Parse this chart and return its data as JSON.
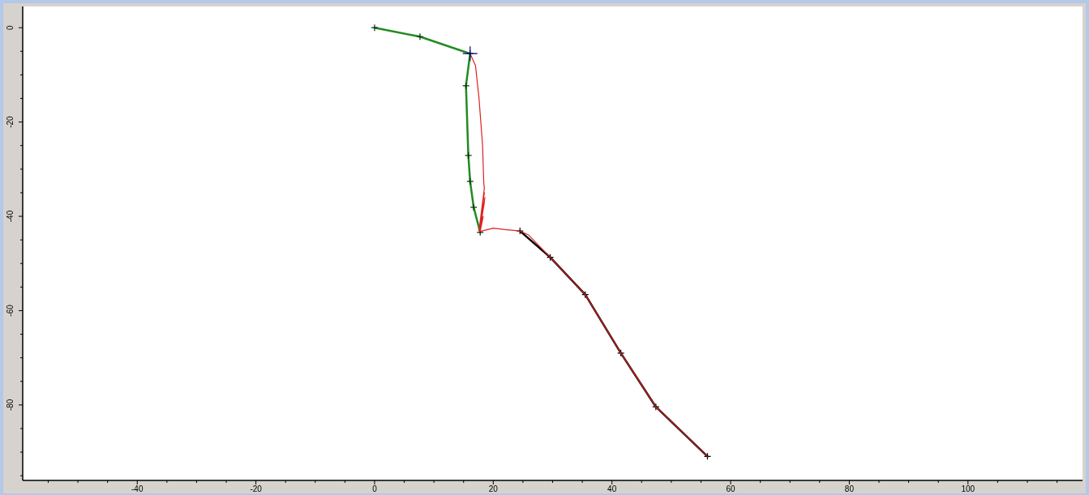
{
  "chart_data": {
    "type": "line",
    "xlim": [
      -59.3,
      119.3
    ],
    "ylim": [
      -96,
      4.5
    ],
    "xticks": [
      {
        "value": -55,
        "label": null
      },
      {
        "value": -50,
        "label": null
      },
      {
        "value": -45,
        "label": null
      },
      -40,
      {
        "value": -35,
        "label": null
      },
      {
        "value": -30,
        "label": null
      },
      {
        "value": -25,
        "label": null
      },
      -20,
      {
        "value": -15,
        "label": null
      },
      {
        "value": -10,
        "label": null
      },
      {
        "value": -5,
        "label": null
      },
      0,
      {
        "value": 5,
        "label": null
      },
      {
        "value": 10,
        "label": null
      },
      {
        "value": 15,
        "label": null
      },
      20,
      {
        "value": 25,
        "label": null
      },
      {
        "value": 30,
        "label": null
      },
      {
        "value": 35,
        "label": null
      },
      40,
      {
        "value": 45,
        "label": null
      },
      {
        "value": 50,
        "label": null
      },
      {
        "value": 55,
        "label": null
      },
      60,
      {
        "value": 65,
        "label": null
      },
      {
        "value": 70,
        "label": null
      },
      {
        "value": 75,
        "label": null
      },
      80,
      {
        "value": 85,
        "label": null
      },
      {
        "value": 90,
        "label": null
      },
      {
        "value": 95,
        "label": null
      },
      100,
      {
        "value": 105,
        "label": null
      },
      {
        "value": 110,
        "label": null
      },
      {
        "value": 115,
        "label": null
      }
    ],
    "yticks": [
      {
        "value": -95,
        "label": null
      },
      {
        "value": -90,
        "label": null
      },
      {
        "value": -85,
        "label": null
      },
      -80,
      {
        "value": -75,
        "label": null
      },
      {
        "value": -70,
        "label": null
      },
      {
        "value": -65,
        "label": null
      },
      -60,
      {
        "value": -55,
        "label": null
      },
      {
        "value": -50,
        "label": null
      },
      {
        "value": -45,
        "label": null
      },
      -40,
      {
        "value": -35,
        "label": null
      },
      {
        "value": -30,
        "label": null
      },
      {
        "value": -25,
        "label": null
      },
      -20,
      {
        "value": -15,
        "label": null
      },
      {
        "value": -10,
        "label": null
      },
      {
        "value": -5,
        "label": null
      },
      0
    ],
    "grid": false,
    "series": [
      {
        "color": "#228b22",
        "marker": "cross",
        "x": [
          0,
          7.65,
          16.1,
          15.4,
          15.8,
          16.1,
          16.7,
          17.8
        ],
        "values": [
          0,
          -1.9,
          -5.5,
          -12.3,
          -27.1,
          -32.6,
          -38.1,
          -43.4
        ]
      },
      {
        "color": "#000000",
        "marker": "cross",
        "x": [
          24.5,
          29.6,
          35.5,
          41.5,
          47.4,
          56.1
        ],
        "values": [
          -43.1,
          -48.7,
          -56.6,
          -69,
          -80.4,
          -90.9
        ]
      },
      {
        "color": "#e02020",
        "marker": "none",
        "x": [
          16.1,
          17,
          17.6,
          18.2,
          18.4,
          18.5,
          17.6,
          18.5,
          17.6,
          18.6,
          17.7,
          18.5,
          17.7,
          18.3,
          17.8,
          20,
          22,
          24.5,
          26,
          29.6,
          35.5,
          41.5,
          47.4,
          56.1
        ],
        "values": [
          -5.5,
          -8,
          -15,
          -25,
          -33,
          -34,
          -43,
          -35,
          -43,
          -36,
          -43.2,
          -37,
          -43.2,
          -40,
          -43.2,
          -42.5,
          -42.8,
          -43.1,
          -44,
          -48.7,
          -56.6,
          -69,
          -80.4,
          -90.9
        ]
      },
      {
        "type": "scatter",
        "color": "#000080",
        "marker": "cross",
        "x": [
          16.1
        ],
        "values": [
          -5.5
        ]
      }
    ]
  }
}
